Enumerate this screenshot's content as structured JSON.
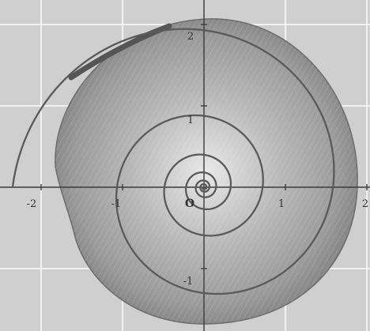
{
  "figure": {
    "axes": {
      "x_range": [
        -2.4,
        2.0
      ],
      "y_range": [
        -1.7,
        2.2
      ],
      "x_ticks": [
        {
          "value": -2,
          "label": "-2"
        },
        {
          "value": -1,
          "label": "-1"
        },
        {
          "value": 1,
          "label": "1"
        },
        {
          "value": 2,
          "label": "2"
        }
      ],
      "y_ticks": [
        {
          "value": 2,
          "label": "2"
        },
        {
          "value": 1,
          "label": "1"
        },
        {
          "value": -1,
          "label": "-1"
        }
      ],
      "origin_label": "O",
      "grid": true
    },
    "spiral": {
      "type": "logarithmic",
      "growth_per_turn": 2.2,
      "radius_at_negative_x_axis": 2.35,
      "turns": 6,
      "color": "#5a5a5a"
    },
    "background_image": "snail-shell photograph",
    "colors": {
      "background": "#cfcfcf",
      "grid": "#f2f2f2",
      "axis": "#3a3a3a"
    }
  }
}
